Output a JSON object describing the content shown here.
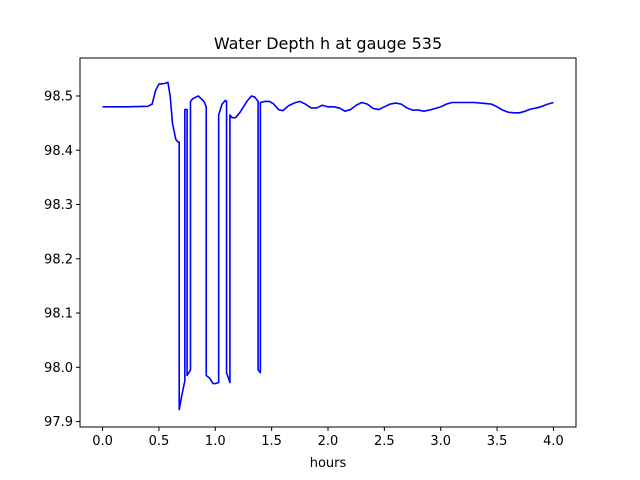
{
  "chart_data": {
    "type": "line",
    "title": "Water Depth h at gauge 535",
    "xlabel": "hours",
    "ylabel": "",
    "xlim": [
      -0.2,
      4.2
    ],
    "ylim": [
      97.89,
      98.57
    ],
    "x_ticks": [
      0.0,
      0.5,
      1.0,
      1.5,
      2.0,
      2.5,
      3.0,
      3.5,
      4.0
    ],
    "x_tick_labels": [
      "0.0",
      "0.5",
      "1.0",
      "1.5",
      "2.0",
      "2.5",
      "3.0",
      "3.5",
      "4.0"
    ],
    "y_ticks": [
      97.9,
      98.0,
      98.1,
      98.2,
      98.3,
      98.4,
      98.5
    ],
    "y_tick_labels": [
      "97.9",
      "98.0",
      "98.1",
      "98.2",
      "98.3",
      "98.4",
      "98.5"
    ],
    "grid": false,
    "legend": "none",
    "colors": {
      "series": "#0000ff",
      "axes": "#000000",
      "background": "#ffffff"
    },
    "series": [
      {
        "x": [
          0.0,
          0.2,
          0.4,
          0.44,
          0.47,
          0.5,
          0.55,
          0.58,
          0.6,
          0.62,
          0.65,
          0.67,
          0.68,
          0.68,
          0.7,
          0.73,
          0.73,
          0.75,
          0.75,
          0.78,
          0.78,
          0.8,
          0.85,
          0.9,
          0.92,
          0.92,
          0.95,
          0.98,
          1.0,
          1.03,
          1.03,
          1.06,
          1.09,
          1.1,
          1.1,
          1.13,
          1.13,
          1.15,
          1.18,
          1.22,
          1.28,
          1.32,
          1.35,
          1.38,
          1.38,
          1.39,
          1.4,
          1.4,
          1.44,
          1.48,
          1.52,
          1.56,
          1.6,
          1.65,
          1.7,
          1.75,
          1.8,
          1.85,
          1.9,
          1.95,
          2.0,
          2.05,
          2.1,
          2.15,
          2.2,
          2.25,
          2.3,
          2.35,
          2.4,
          2.45,
          2.5,
          2.55,
          2.6,
          2.65,
          2.7,
          2.75,
          2.8,
          2.85,
          2.9,
          2.95,
          3.0,
          3.05,
          3.1,
          3.2,
          3.3,
          3.4,
          3.45,
          3.5,
          3.55,
          3.6,
          3.65,
          3.7,
          3.75,
          3.8,
          3.85,
          3.9,
          3.95,
          4.0
        ],
        "y": [
          98.48,
          98.48,
          98.481,
          98.485,
          98.51,
          98.522,
          98.523,
          98.525,
          98.5,
          98.45,
          98.42,
          98.415,
          98.415,
          97.922,
          97.945,
          97.975,
          98.475,
          98.475,
          97.985,
          97.995,
          98.49,
          98.495,
          98.5,
          98.49,
          98.48,
          97.985,
          97.98,
          97.97,
          97.97,
          97.972,
          98.465,
          98.485,
          98.492,
          98.49,
          97.99,
          97.972,
          98.465,
          98.46,
          98.46,
          98.47,
          98.49,
          98.5,
          98.498,
          98.49,
          97.995,
          97.993,
          97.99,
          98.488,
          98.49,
          98.49,
          98.485,
          98.475,
          98.473,
          98.482,
          98.487,
          98.49,
          98.485,
          98.478,
          98.478,
          98.483,
          98.48,
          98.48,
          98.478,
          98.472,
          98.475,
          98.483,
          98.488,
          98.485,
          98.477,
          98.475,
          98.48,
          98.485,
          98.487,
          98.485,
          98.478,
          98.474,
          98.474,
          98.472,
          98.474,
          98.477,
          98.48,
          98.485,
          98.488,
          98.488,
          98.488,
          98.486,
          98.485,
          98.48,
          98.474,
          98.47,
          98.469,
          98.469,
          98.472,
          98.476,
          98.478,
          98.481,
          98.485,
          98.488
        ]
      }
    ]
  }
}
